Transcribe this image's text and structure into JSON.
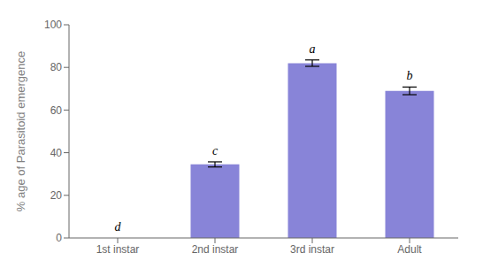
{
  "chart_data": {
    "type": "bar",
    "categories": [
      "1st instar",
      "2nd instar",
      "3rd instar",
      "Adult"
    ],
    "values": [
      0.0,
      34.5,
      82.0,
      69.0
    ],
    "errors": [
      0.0,
      1.2,
      1.5,
      1.8
    ],
    "letters": [
      "d",
      "c",
      "a",
      "b"
    ],
    "color": "#8884d8",
    "ylabel": "% age of Parasitoid emergence",
    "ylim": [
      0,
      100
    ],
    "yticks": [
      0,
      20,
      40,
      60,
      80,
      100
    ],
    "grid": false
  }
}
